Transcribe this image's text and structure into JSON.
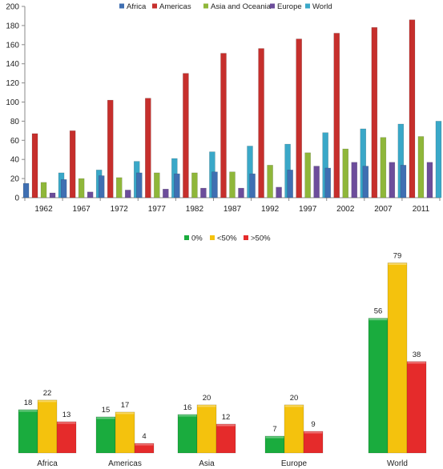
{
  "colors": {
    "Africa": "#3f6fb2",
    "Americas": "#c62f2c",
    "Asia and Oceania": "#8fb73a",
    "Europe": "#6c4d9b",
    "World": "#3aa8c8",
    "0%": "#1aac3e",
    "<50%": "#f4c20d",
    ">50%": "#e52b2b",
    "axis": "#8a8a8a"
  },
  "chart_data": [
    {
      "type": "bar",
      "categories": [
        "1962",
        "1967",
        "1972",
        "1977",
        "1982",
        "1987",
        "1992",
        "1997",
        "2002",
        "2007",
        "2011"
      ],
      "series": [
        {
          "name": "Africa",
          "values": [
            15,
            19,
            23,
            26,
            25,
            27,
            25,
            29,
            31,
            33,
            34
          ]
        },
        {
          "name": "Americas",
          "values": [
            67,
            70,
            102,
            104,
            130,
            151,
            156,
            166,
            172,
            178,
            186
          ]
        },
        {
          "name": "Asia and Oceania",
          "values": [
            16,
            20,
            21,
            26,
            26,
            27,
            34,
            47,
            51,
            63,
            64
          ]
        },
        {
          "name": "Europe",
          "values": [
            5,
            6,
            8,
            9,
            10,
            10,
            11,
            33,
            37,
            37,
            37
          ]
        },
        {
          "name": "World",
          "values": [
            26,
            29,
            38,
            41,
            48,
            54,
            56,
            68,
            72,
            77,
            80
          ]
        }
      ],
      "yticks": [
        "0",
        "20",
        "40",
        "60",
        "80",
        "100",
        "120",
        "140",
        "160",
        "180",
        "200"
      ],
      "ylim": [
        0,
        200
      ],
      "grid": false,
      "legend": "top"
    },
    {
      "type": "bar",
      "categories": [
        "Africa",
        "Americas",
        "Asia",
        "Europe",
        "World"
      ],
      "series": [
        {
          "name": "0%",
          "values": [
            18,
            15,
            16,
            7,
            56
          ]
        },
        {
          "name": "<50%",
          "values": [
            22,
            17,
            20,
            20,
            79
          ]
        },
        {
          "name": ">50%",
          "values": [
            13,
            4,
            12,
            9,
            38
          ]
        }
      ],
      "ylim": [
        0,
        82
      ],
      "grid": false,
      "legend": "top",
      "data_labels": true
    }
  ]
}
